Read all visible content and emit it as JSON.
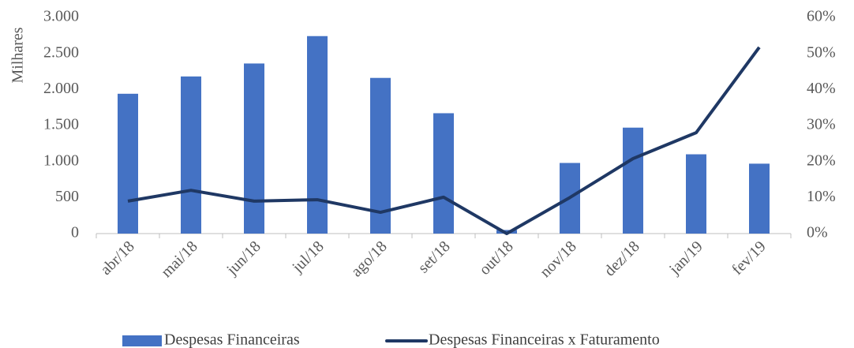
{
  "chart_data": {
    "type": "bar_line",
    "y_label": "Milhares",
    "categories": [
      "abr/18",
      "mai/18",
      "jun/18",
      "jul/18",
      "ago/18",
      "set/18",
      "out/18",
      "nov/18",
      "dez/18",
      "jan/19",
      "fev/19"
    ],
    "series": [
      {
        "name": "Despesas Financeiras",
        "type": "bar",
        "color": "#4472c4",
        "axis": "y",
        "values": [
          1940,
          2180,
          2360,
          2740,
          2160,
          1670,
          50,
          980,
          1470,
          1100,
          970
        ]
      },
      {
        "name": "Despesas Financeiras x Faturamento",
        "type": "line",
        "color": "#1f3864",
        "axis": "y2",
        "values": [
          9.0,
          12.0,
          9.0,
          9.4,
          5.9,
          10.1,
          0,
          10,
          20.8,
          28,
          51.7
        ]
      }
    ],
    "ylim": [
      0,
      3000
    ],
    "yticks": [
      0,
      500,
      {
        "value": 1000,
        "label": "1.000"
      },
      {
        "value": 1500,
        "label": "1.500"
      },
      {
        "value": 2000,
        "label": "2.000"
      },
      {
        "value": 2500,
        "label": "2.500"
      },
      {
        "value": 3000,
        "label": "3.000"
      }
    ],
    "y2lim": [
      0,
      60
    ],
    "y2ticks": [
      {
        "value": 0,
        "label": "0%"
      },
      {
        "value": 10,
        "label": "10%"
      },
      {
        "value": 20,
        "label": "20%"
      },
      {
        "value": 30,
        "label": "30%"
      },
      {
        "value": 40,
        "label": "40%"
      },
      {
        "value": 50,
        "label": "50%"
      },
      {
        "value": 60,
        "label": "60%"
      }
    ],
    "grid": false,
    "legend": "bottom"
  }
}
